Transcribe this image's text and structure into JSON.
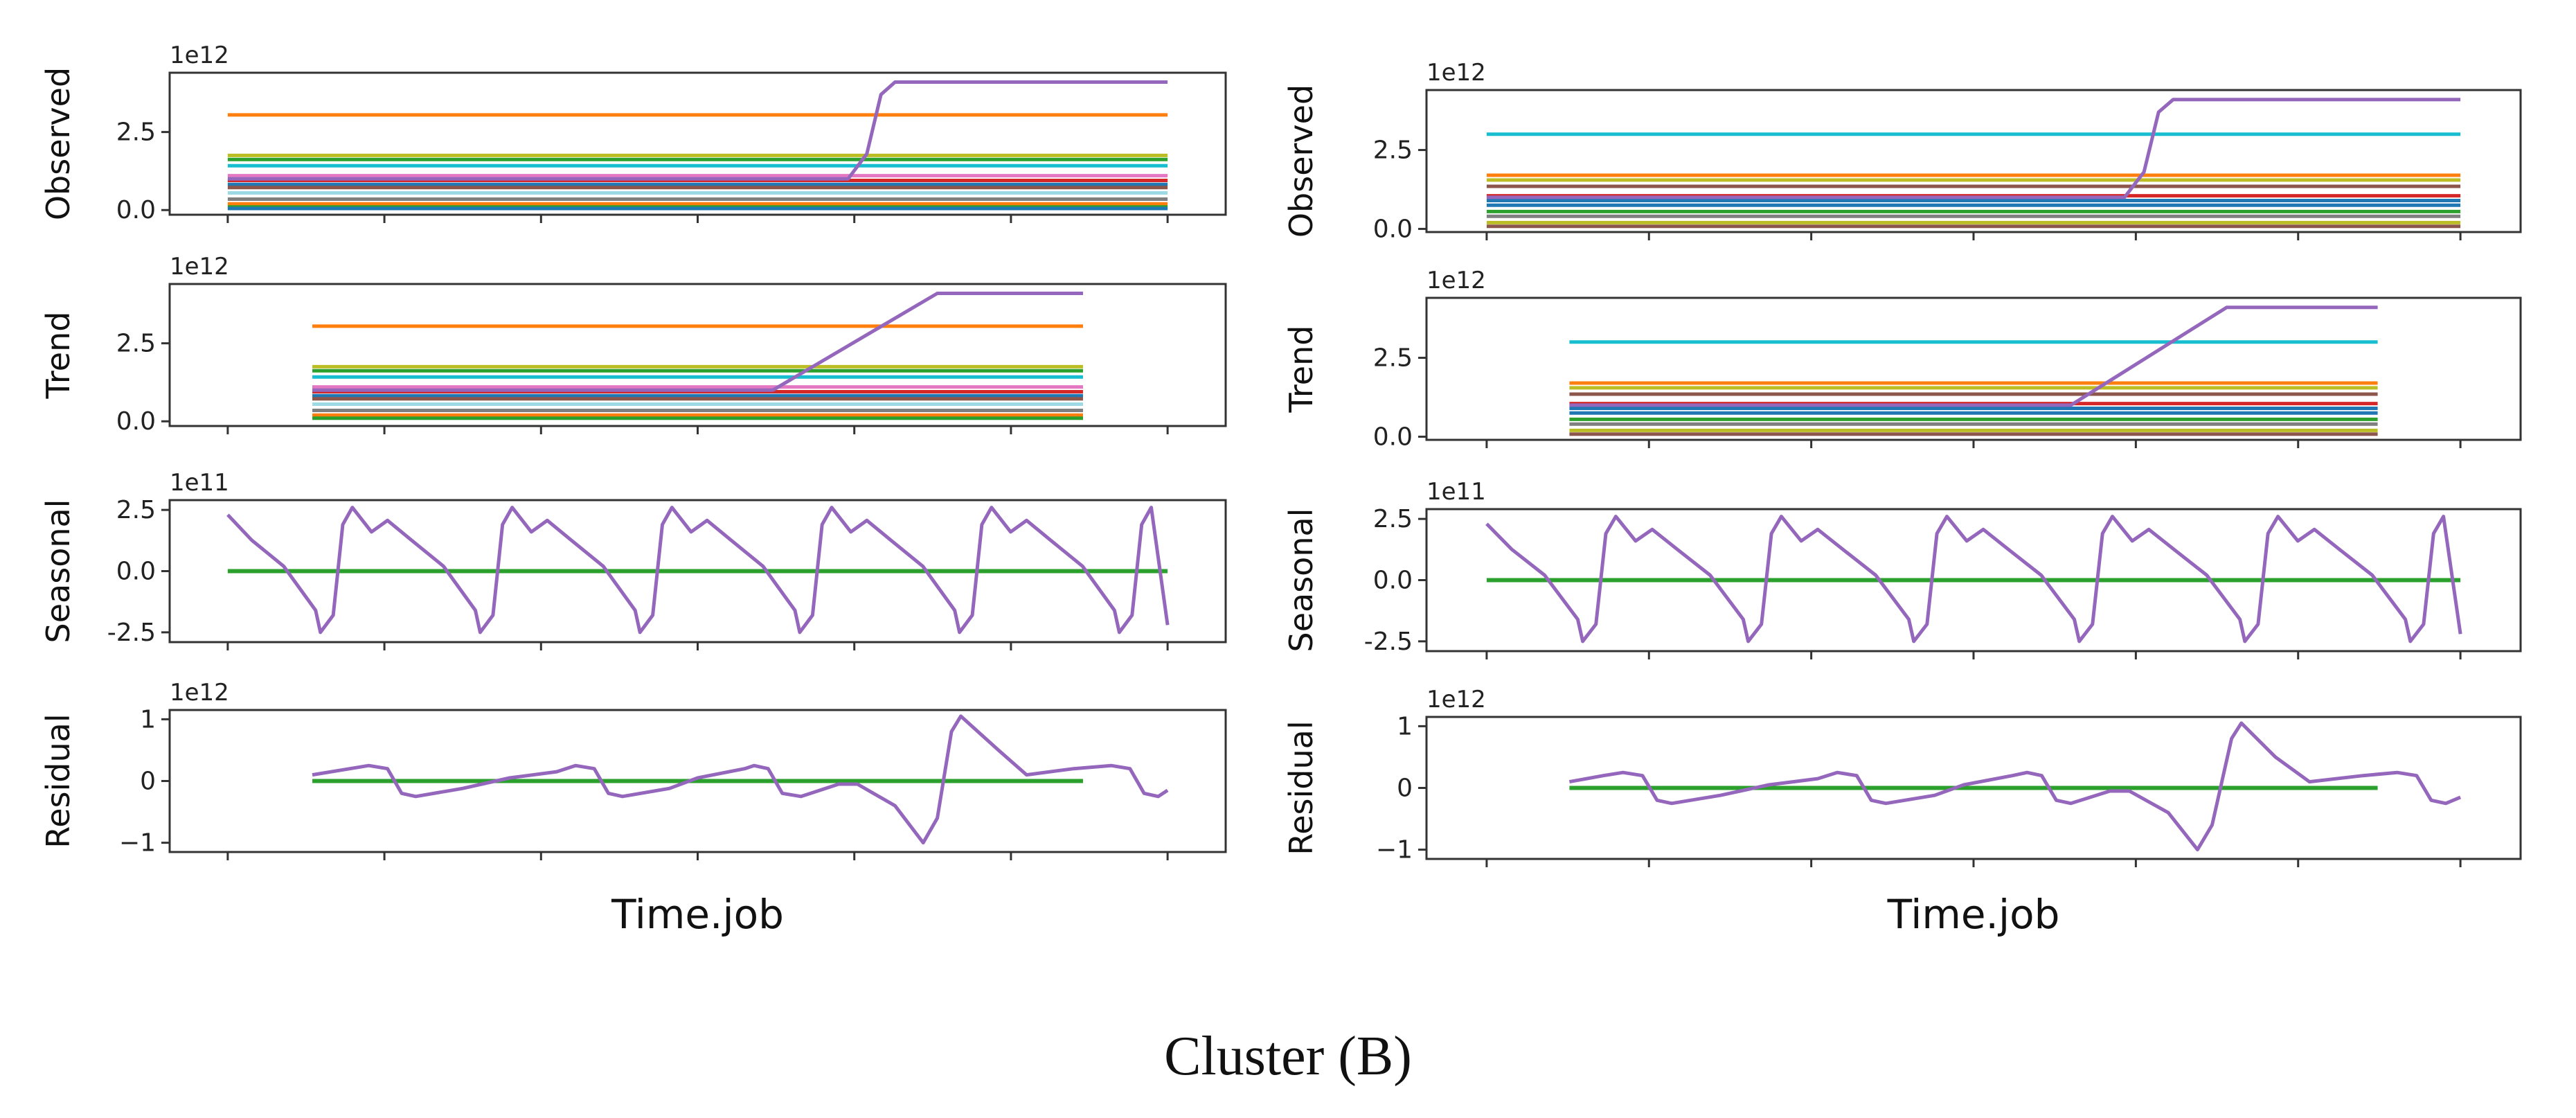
{
  "caption": "Cluster (B)",
  "chart_data": [
    {
      "type": "line",
      "panel": "left",
      "xlabel": "Time.job",
      "x_ticks": 7,
      "subplots": [
        {
          "ylabel": "Observed",
          "offset": "1e12",
          "ylim": [
            -0.15,
            4.4
          ],
          "yticks": [
            0.0,
            2.5
          ],
          "ytick_labels": [
            "0.0",
            "2.5"
          ],
          "constant_series": [
            {
              "color": "#ff7f0e",
              "value": 3.05
            },
            {
              "color": "#bcbd22",
              "value": 1.75
            },
            {
              "color": "#2ca02c",
              "value": 1.62
            },
            {
              "color": "#17becf",
              "value": 1.42
            },
            {
              "color": "#e377c2",
              "value": 1.1
            },
            {
              "color": "#d62728",
              "value": 0.95
            },
            {
              "color": "#1f77b4",
              "value": 0.82
            },
            {
              "color": "#8c564b",
              "value": 0.72
            },
            {
              "color": "#9edae5",
              "value": 0.55
            },
            {
              "color": "#7f7f7f",
              "value": 0.35
            },
            {
              "color": "#ff7f0e",
              "value": 0.2
            },
            {
              "color": "#2ca02c",
              "value": 0.1
            },
            {
              "color": "#1f77b4",
              "value": 0.05
            }
          ],
          "jump_series": {
            "color": "#9467bd",
            "start": 0,
            "end": 1,
            "points": [
              [
                0.0,
                1.0
              ],
              [
                0.66,
                1.0
              ],
              [
                0.68,
                1.8
              ],
              [
                0.695,
                3.7
              ],
              [
                0.71,
                4.1
              ],
              [
                1.0,
                4.1
              ]
            ]
          }
        },
        {
          "ylabel": "Trend",
          "offset": "1e12",
          "ylim": [
            -0.15,
            4.4
          ],
          "yticks": [
            0.0,
            2.5
          ],
          "ytick_labels": [
            "0.0",
            "2.5"
          ],
          "range": [
            0.09,
            0.91
          ],
          "constant_series": [
            {
              "color": "#ff7f0e",
              "value": 3.05
            },
            {
              "color": "#bcbd22",
              "value": 1.75
            },
            {
              "color": "#2ca02c",
              "value": 1.62
            },
            {
              "color": "#17becf",
              "value": 1.42
            },
            {
              "color": "#e377c2",
              "value": 1.1
            },
            {
              "color": "#d62728",
              "value": 0.95
            },
            {
              "color": "#1f77b4",
              "value": 0.82
            },
            {
              "color": "#8c564b",
              "value": 0.72
            },
            {
              "color": "#9edae5",
              "value": 0.55
            },
            {
              "color": "#7f7f7f",
              "value": 0.35
            },
            {
              "color": "#ff7f0e",
              "value": 0.2
            },
            {
              "color": "#2ca02c",
              "value": 0.1
            }
          ],
          "jump_series": {
            "color": "#9467bd",
            "points": [
              [
                0.09,
                1.0
              ],
              [
                0.58,
                1.0
              ],
              [
                0.755,
                4.1
              ],
              [
                0.91,
                4.1
              ]
            ]
          }
        },
        {
          "ylabel": "Seasonal",
          "offset": "1e11",
          "ylim": [
            -2.9,
            2.9
          ],
          "yticks": [
            -2.5,
            0.0,
            2.5
          ],
          "ytick_labels": [
            "-2.5",
            "0.0",
            "2.5"
          ],
          "flat_series": {
            "color": "#2ca02c",
            "value": 0.0
          },
          "periodic_series": {
            "color": "#9467bd",
            "period": 0.17,
            "phase": 0.0,
            "start": 2.3,
            "min": -2.5,
            "max": 2.6,
            "cycles_end": 1.0,
            "end_value": -2.2
          }
        },
        {
          "ylabel": "Residual",
          "offset": "1e12",
          "ylim": [
            -1.15,
            1.15
          ],
          "yticks": [
            -1,
            0,
            1
          ],
          "ytick_labels": [
            "−1",
            "0",
            "1"
          ],
          "flat_series": {
            "color": "#2ca02c",
            "value": 0.0,
            "range": [
              0.09,
              0.91
            ]
          },
          "residual_series": {
            "color": "#9467bd",
            "points": [
              [
                0.09,
                0.1
              ],
              [
                0.13,
                0.2
              ],
              [
                0.15,
                0.25
              ],
              [
                0.17,
                0.2
              ],
              [
                0.185,
                -0.2
              ],
              [
                0.2,
                -0.25
              ],
              [
                0.25,
                -0.12
              ],
              [
                0.3,
                0.05
              ],
              [
                0.35,
                0.15
              ],
              [
                0.37,
                0.25
              ],
              [
                0.39,
                0.2
              ],
              [
                0.405,
                -0.2
              ],
              [
                0.42,
                -0.25
              ],
              [
                0.47,
                -0.12
              ],
              [
                0.5,
                0.05
              ],
              [
                0.55,
                0.2
              ],
              [
                0.56,
                0.25
              ],
              [
                0.575,
                0.2
              ],
              [
                0.59,
                -0.2
              ],
              [
                0.61,
                -0.25
              ],
              [
                0.65,
                -0.05
              ],
              [
                0.67,
                -0.05
              ],
              [
                0.71,
                -0.4
              ],
              [
                0.74,
                -1.0
              ],
              [
                0.755,
                -0.6
              ],
              [
                0.77,
                0.8
              ],
              [
                0.78,
                1.05
              ],
              [
                0.82,
                0.5
              ],
              [
                0.85,
                0.1
              ],
              [
                0.9,
                0.2
              ],
              [
                0.94,
                0.25
              ],
              [
                0.96,
                0.2
              ],
              [
                0.975,
                -0.2
              ],
              [
                0.99,
                -0.25
              ],
              [
                1.0,
                -0.15
              ]
            ],
            "range": [
              0.09,
              0.91
            ]
          }
        }
      ]
    },
    {
      "type": "line",
      "panel": "right",
      "xlabel": "Time.job",
      "x_ticks": 7,
      "subplots": [
        {
          "ylabel": "Observed",
          "offset": "1e12",
          "ylim": [
            -0.1,
            4.4
          ],
          "yticks": [
            0.0,
            2.5
          ],
          "ytick_labels": [
            "0.0",
            "2.5"
          ],
          "constant_series": [
            {
              "color": "#17becf",
              "value": 3.0
            },
            {
              "color": "#ff7f0e",
              "value": 1.7
            },
            {
              "color": "#bcbd22",
              "value": 1.55
            },
            {
              "color": "#8c564b",
              "value": 1.35
            },
            {
              "color": "#d62728",
              "value": 1.05
            },
            {
              "color": "#1f77b4",
              "value": 0.9
            },
            {
              "color": "#1f77b4",
              "value": 0.75
            },
            {
              "color": "#2ca02c",
              "value": 0.55
            },
            {
              "color": "#7f7f7f",
              "value": 0.4
            },
            {
              "color": "#bcbd22",
              "value": 0.2
            },
            {
              "color": "#8c564b",
              "value": 0.08
            }
          ],
          "jump_series": {
            "color": "#9467bd",
            "points": [
              [
                0.0,
                1.0
              ],
              [
                0.655,
                1.0
              ],
              [
                0.675,
                1.8
              ],
              [
                0.69,
                3.7
              ],
              [
                0.705,
                4.1
              ],
              [
                1.0,
                4.1
              ]
            ]
          }
        },
        {
          "ylabel": "Trend",
          "offset": "1e12",
          "ylim": [
            -0.1,
            4.4
          ],
          "yticks": [
            0.0,
            2.5
          ],
          "ytick_labels": [
            "0.0",
            "2.5"
          ],
          "range": [
            0.085,
            0.915
          ],
          "constant_series": [
            {
              "color": "#17becf",
              "value": 3.0
            },
            {
              "color": "#ff7f0e",
              "value": 1.7
            },
            {
              "color": "#bcbd22",
              "value": 1.55
            },
            {
              "color": "#8c564b",
              "value": 1.35
            },
            {
              "color": "#d62728",
              "value": 1.05
            },
            {
              "color": "#1f77b4",
              "value": 0.9
            },
            {
              "color": "#1f77b4",
              "value": 0.75
            },
            {
              "color": "#2ca02c",
              "value": 0.55
            },
            {
              "color": "#7f7f7f",
              "value": 0.4
            },
            {
              "color": "#bcbd22",
              "value": 0.2
            },
            {
              "color": "#8c564b",
              "value": 0.08
            }
          ],
          "jump_series": {
            "color": "#9467bd",
            "points": [
              [
                0.085,
                1.0
              ],
              [
                0.6,
                1.0
              ],
              [
                0.76,
                4.1
              ],
              [
                0.915,
                4.1
              ]
            ]
          }
        },
        {
          "ylabel": "Seasonal",
          "offset": "1e11",
          "ylim": [
            -2.9,
            2.9
          ],
          "yticks": [
            -2.5,
            0.0,
            2.5
          ],
          "ytick_labels": [
            "-2.5",
            "0.0",
            "2.5"
          ],
          "flat_series": {
            "color": "#2ca02c",
            "value": 0.0
          },
          "periodic_series": {
            "color": "#9467bd",
            "period": 0.17,
            "phase": 0.0,
            "start": 2.3,
            "min": -2.5,
            "max": 2.6,
            "cycles_end": 1.0,
            "end_value": -2.2
          }
        },
        {
          "ylabel": "Residual",
          "offset": "1e12",
          "ylim": [
            -1.15,
            1.15
          ],
          "yticks": [
            -1,
            0,
            1
          ],
          "ytick_labels": [
            "−1",
            "0",
            "1"
          ],
          "flat_series": {
            "color": "#2ca02c",
            "value": 0.0,
            "range": [
              0.085,
              0.915
            ]
          },
          "residual_series": {
            "color": "#9467bd",
            "points": [
              [
                0.085,
                0.1
              ],
              [
                0.12,
                0.2
              ],
              [
                0.14,
                0.25
              ],
              [
                0.16,
                0.2
              ],
              [
                0.175,
                -0.2
              ],
              [
                0.19,
                -0.25
              ],
              [
                0.24,
                -0.12
              ],
              [
                0.29,
                0.05
              ],
              [
                0.34,
                0.15
              ],
              [
                0.36,
                0.25
              ],
              [
                0.38,
                0.2
              ],
              [
                0.395,
                -0.2
              ],
              [
                0.41,
                -0.25
              ],
              [
                0.46,
                -0.12
              ],
              [
                0.49,
                0.05
              ],
              [
                0.54,
                0.2
              ],
              [
                0.555,
                0.25
              ],
              [
                0.57,
                0.2
              ],
              [
                0.585,
                -0.2
              ],
              [
                0.6,
                -0.25
              ],
              [
                0.64,
                -0.05
              ],
              [
                0.66,
                -0.05
              ],
              [
                0.7,
                -0.4
              ],
              [
                0.73,
                -1.0
              ],
              [
                0.745,
                -0.6
              ],
              [
                0.765,
                0.8
              ],
              [
                0.775,
                1.05
              ],
              [
                0.81,
                0.5
              ],
              [
                0.845,
                0.1
              ],
              [
                0.9,
                0.2
              ],
              [
                0.935,
                0.25
              ],
              [
                0.955,
                0.2
              ],
              [
                0.97,
                -0.2
              ],
              [
                0.985,
                -0.25
              ],
              [
                1.0,
                -0.15
              ]
            ],
            "range": [
              0.085,
              0.915
            ]
          }
        }
      ]
    }
  ]
}
